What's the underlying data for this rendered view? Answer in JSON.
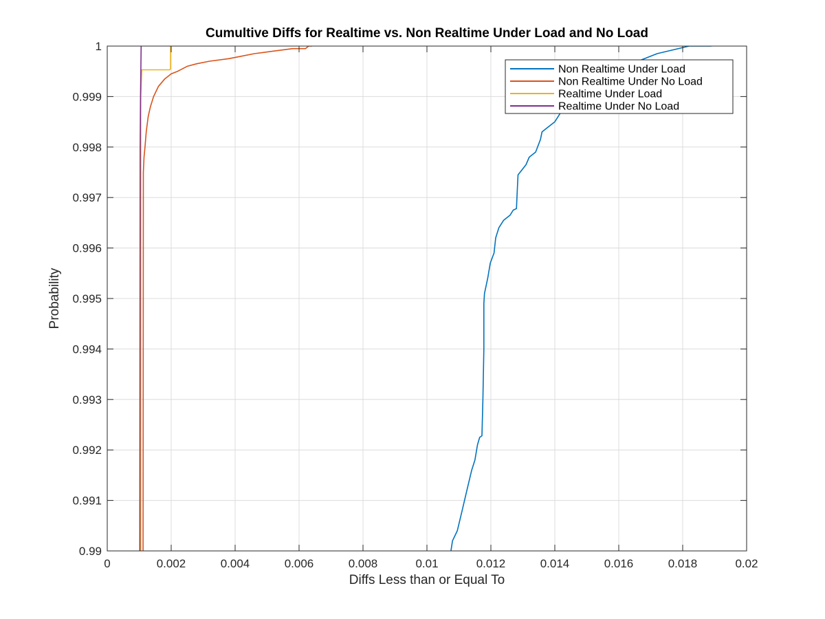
{
  "chart_data": {
    "type": "line",
    "title": "Cumultive Diffs for Realtime vs. Non Realtime Under Load and No Load",
    "xlabel": "Diffs Less than or Equal To",
    "ylabel": "Probability",
    "xlim": [
      0,
      0.02
    ],
    "ylim": [
      0.99,
      1
    ],
    "x_ticks": [
      0,
      0.002,
      0.004,
      0.006,
      0.008,
      0.01,
      0.012,
      0.014,
      0.016,
      0.018,
      0.02
    ],
    "x_tick_labels": [
      "0",
      "0.002",
      "0.004",
      "0.006",
      "0.008",
      "0.01",
      "0.012",
      "0.014",
      "0.016",
      "0.018",
      "0.02"
    ],
    "y_ticks": [
      0.99,
      0.991,
      0.992,
      0.993,
      0.994,
      0.995,
      0.996,
      0.997,
      0.998,
      0.999,
      1
    ],
    "y_tick_labels": [
      "0.99",
      "0.991",
      "0.992",
      "0.993",
      "0.994",
      "0.995",
      "0.996",
      "0.997",
      "0.998",
      "0.999",
      "1"
    ],
    "grid": true,
    "legend_position": "top-right",
    "series": [
      {
        "name": "Non Realtime Under Load",
        "color": "#0072bd",
        "x": [
          0.01075,
          0.0108,
          0.01095,
          0.0111,
          0.01125,
          0.0114,
          0.0115,
          0.01158,
          0.01165,
          0.01172,
          0.01175,
          0.01178,
          0.01178,
          0.0118,
          0.0119,
          0.01198,
          0.0121,
          0.01215,
          0.01225,
          0.0124,
          0.0126,
          0.0127,
          0.0128,
          0.01283,
          0.01285,
          0.0131,
          0.0132,
          0.0134,
          0.01355,
          0.0136,
          0.0138,
          0.014,
          0.0142,
          0.0145,
          0.0148,
          0.0152,
          0.0158,
          0.0162,
          0.0166,
          0.0172,
          0.0182,
          0.0189
        ],
        "y": [
          0.99,
          0.9902,
          0.9904,
          0.9908,
          0.9912,
          0.9916,
          0.9918,
          0.9921,
          0.99225,
          0.99228,
          0.993,
          0.994,
          0.9949,
          0.9951,
          0.9954,
          0.9957,
          0.9959,
          0.9962,
          0.9964,
          0.99655,
          0.99665,
          0.99675,
          0.99678,
          0.9972,
          0.99745,
          0.99765,
          0.9978,
          0.9979,
          0.99815,
          0.9983,
          0.9984,
          0.9985,
          0.9987,
          0.9989,
          0.999,
          0.9992,
          0.99935,
          0.99955,
          0.9997,
          0.99985,
          1,
          1
        ]
      },
      {
        "name": "Non Realtime Under No Load",
        "color": "#d95319",
        "x": [
          0.00112,
          0.00113,
          0.00115,
          0.00118,
          0.00122,
          0.00128,
          0.00135,
          0.00145,
          0.0016,
          0.0018,
          0.002,
          0.0022,
          0.0025,
          0.0028,
          0.0032,
          0.0038,
          0.0042,
          0.0046,
          0.0052,
          0.0058,
          0.0062,
          0.0063,
          0.0064
        ],
        "y": [
          0.99,
          0.9975,
          0.9978,
          0.998,
          0.9983,
          0.9986,
          0.9988,
          0.999,
          0.9992,
          0.99935,
          0.99945,
          0.9995,
          0.9996,
          0.99965,
          0.9997,
          0.99975,
          0.9998,
          0.99985,
          0.9999,
          0.99995,
          0.99995,
          1,
          1
        ]
      },
      {
        "name": "Realtime Under Load",
        "color": "#edb120",
        "x": [
          0.00105,
          0.00105,
          0.00108,
          0.00195,
          0.00198,
          0.00198
        ],
        "y": [
          0.99,
          0.999,
          0.99953,
          0.99953,
          0.99955,
          1
        ]
      },
      {
        "name": "Realtime Under No Load",
        "color": "#7e2f8e",
        "x": [
          0.00102,
          0.00103,
          0.00104,
          0.00106
        ],
        "y": [
          0.99,
          0.998,
          0.999,
          1
        ]
      }
    ]
  }
}
